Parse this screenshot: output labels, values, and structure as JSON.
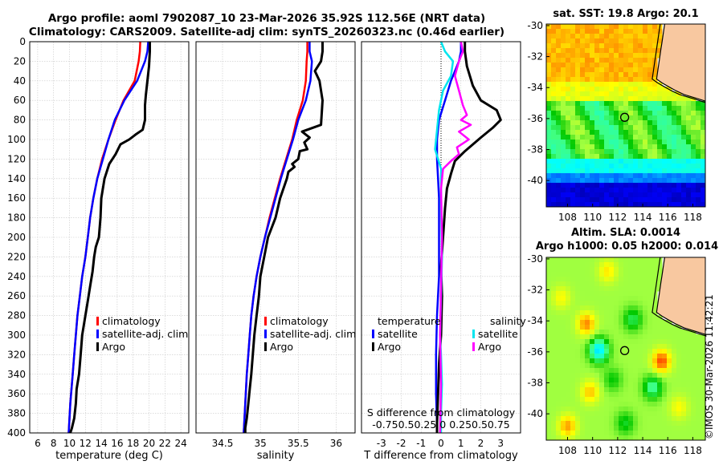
{
  "header": {
    "title_line1": "Argo profile: aoml 7902087_10 23-Mar-2026 35.92S 112.56E (NRT data)",
    "title_line2": "Climatology: CARS2009. Satellite-adj clim: synTS_20260323.nc (0.46d earlier)"
  },
  "map_sst": {
    "title": "sat. SST: 19.8 Argo: 20.1",
    "lon_ticks": [
      108,
      110,
      112,
      114,
      116,
      118
    ],
    "lat_ticks": [
      -30,
      -32,
      -34,
      -36,
      -38,
      -40
    ],
    "extent": {
      "lon": [
        106.3,
        119.0
      ],
      "lat": [
        -41.7,
        -29.9
      ]
    },
    "float_position": {
      "lon": 112.56,
      "lat": -35.92
    },
    "colors": {
      "land": "#f8c8a0"
    }
  },
  "map_sla": {
    "title_line1": "Altim. SLA: 0.0014",
    "title_line2": "Argo h1000: 0.05 h2000: 0.014",
    "lon_ticks": [
      108,
      110,
      112,
      114,
      116,
      118
    ],
    "lat_ticks": [
      -30,
      -32,
      -34,
      -36,
      -38,
      -40
    ],
    "extent": {
      "lon": [
        106.3,
        119.0
      ],
      "lat": [
        -41.7,
        -29.9
      ]
    },
    "float_position": {
      "lon": 112.56,
      "lat": -35.92
    }
  },
  "credit": "©IMOS 30-Mar-2026 11:42:21",
  "chart_data": [
    {
      "type": "line",
      "name": "temperature",
      "xlabel": "temperature (deg C)",
      "ylabel": "",
      "xlim": [
        5,
        25
      ],
      "ylim": [
        400,
        0
      ],
      "xticks": [
        6,
        8,
        10,
        12,
        14,
        16,
        18,
        20,
        22,
        24
      ],
      "yticks": [
        0,
        20,
        40,
        60,
        80,
        100,
        120,
        140,
        160,
        180,
        200,
        220,
        240,
        260,
        280,
        300,
        320,
        340,
        360,
        380,
        400
      ],
      "grid": true,
      "legend": {
        "placement": "lower-right",
        "entries": [
          "climatology",
          "satellite-adj. clim",
          "Argo"
        ]
      },
      "series": [
        {
          "name": "climatology",
          "color": "#ff0000",
          "width": 2.5,
          "x": [
            18.9,
            18.85,
            18.7,
            18.2,
            16.8,
            15.8,
            14.9,
            14.1,
            13.5,
            13.0,
            12.6,
            12.3,
            12.0,
            11.6,
            11.3,
            11.0,
            10.8,
            10.6,
            10.4,
            10.1,
            9.9
          ],
          "depth": [
            0,
            10,
            20,
            40,
            60,
            80,
            100,
            120,
            140,
            160,
            180,
            200,
            220,
            240,
            260,
            280,
            300,
            320,
            340,
            370,
            400
          ]
        },
        {
          "name": "satellite-adj. clim",
          "color": "#0000ff",
          "width": 2.5,
          "x": [
            19.9,
            19.8,
            19.5,
            18.5,
            16.9,
            15.7,
            14.9,
            14.2,
            13.5,
            13.0,
            12.6,
            12.3,
            12.0,
            11.6,
            11.3,
            11.0,
            10.8,
            10.6,
            10.4,
            10.1,
            9.9
          ],
          "depth": [
            0,
            10,
            20,
            40,
            60,
            80,
            100,
            120,
            140,
            160,
            180,
            200,
            220,
            240,
            260,
            280,
            300,
            320,
            340,
            370,
            400
          ]
        },
        {
          "name": "Argo",
          "color": "#000000",
          "width": 3,
          "x": [
            20.1,
            20.1,
            20.0,
            19.8,
            19.6,
            19.5,
            19.5,
            19.2,
            18.3,
            17.5,
            16.4,
            15.8,
            15.0,
            14.4,
            14.0,
            13.9,
            13.7,
            13.3,
            13.1,
            12.9,
            12.6,
            12.3,
            12.0,
            11.6,
            11.4,
            11.2,
            10.9,
            10.8,
            10.6,
            10.3,
            10.1
          ],
          "depth": [
            0,
            10,
            25,
            40,
            55,
            65,
            80,
            90,
            95,
            100,
            105,
            115,
            125,
            140,
            160,
            180,
            200,
            210,
            220,
            235,
            250,
            265,
            280,
            300,
            320,
            340,
            355,
            370,
            385,
            395,
            400
          ]
        }
      ]
    },
    {
      "type": "line",
      "name": "salinity",
      "xlabel": "salinity",
      "ylabel": "",
      "xlim": [
        34.15,
        36.25
      ],
      "ylim": [
        400,
        0
      ],
      "xticks": [
        34.5,
        35,
        35.5,
        36
      ],
      "xtick_labels": [
        "34.5",
        "35",
        "35.5",
        "36"
      ],
      "grid": true,
      "legend": {
        "placement": "lower-right",
        "entries": [
          "climatology",
          "satellite-adj. clim",
          "Argo"
        ]
      },
      "series": [
        {
          "name": "climatology",
          "color": "#ff0000",
          "width": 2.5,
          "x": [
            35.62,
            35.62,
            35.61,
            35.6,
            35.56,
            35.48,
            35.42,
            35.34,
            35.26,
            35.19,
            35.12,
            35.06,
            35.0,
            34.95,
            34.91,
            34.88,
            34.86,
            34.84,
            34.82,
            34.8,
            34.78
          ],
          "depth": [
            0,
            10,
            20,
            40,
            60,
            80,
            100,
            120,
            140,
            160,
            180,
            200,
            220,
            240,
            260,
            280,
            300,
            320,
            340,
            370,
            400
          ]
        },
        {
          "name": "satellite-adj. clim",
          "color": "#0000ff",
          "width": 2.5,
          "x": [
            35.65,
            35.65,
            35.68,
            35.66,
            35.6,
            35.5,
            35.43,
            35.35,
            35.27,
            35.2,
            35.13,
            35.06,
            35.0,
            34.95,
            34.91,
            34.88,
            34.86,
            34.84,
            34.82,
            34.8,
            34.78
          ],
          "depth": [
            0,
            10,
            20,
            40,
            60,
            80,
            100,
            120,
            140,
            160,
            180,
            200,
            220,
            240,
            260,
            280,
            300,
            320,
            340,
            370,
            400
          ]
        },
        {
          "name": "Argo",
          "color": "#000000",
          "width": 3,
          "x": [
            35.82,
            35.82,
            35.8,
            35.72,
            35.78,
            35.82,
            35.8,
            35.62,
            35.55,
            35.65,
            35.58,
            35.62,
            35.52,
            35.5,
            35.42,
            35.45,
            35.37,
            35.35,
            35.26,
            35.2,
            35.1,
            35.05,
            35.0,
            34.98,
            34.95,
            34.92,
            34.9,
            34.88,
            34.86,
            34.84,
            34.82,
            34.8,
            34.8
          ],
          "depth": [
            0,
            10,
            20,
            30,
            40,
            60,
            85,
            90,
            92,
            98,
            103,
            110,
            112,
            120,
            125,
            128,
            133,
            140,
            160,
            180,
            200,
            220,
            240,
            260,
            280,
            300,
            320,
            340,
            355,
            370,
            385,
            395,
            400
          ]
        }
      ]
    },
    {
      "type": "line",
      "name": "differences",
      "xlabel": "T difference from climatology",
      "xlabel_top": "S difference from climatology",
      "ylabel": "",
      "xlim": [
        -4,
        4
      ],
      "ylim": [
        400,
        0
      ],
      "xticks": [
        -3,
        -2,
        -1,
        0,
        1,
        2,
        3
      ],
      "xtick_labels": [
        "-3",
        "-2",
        "-1",
        "0",
        "1",
        "2",
        "3"
      ],
      "s_xtick_labels": [
        "-0.75",
        "0.5",
        "0.25",
        "0",
        "0.25",
        "0.5",
        "0.75"
      ],
      "s_xtick_label_text": "-0.750.50.25 0  0.250.50.75",
      "grid": true,
      "legend": {
        "placement": "lower",
        "temperature_header": "temperature",
        "salinity_header": "salinity",
        "temperature_entries": [
          "satellite",
          "Argo"
        ],
        "salinity_entries": [
          "satellite",
          "Argo"
        ]
      },
      "series": [
        {
          "name": "temperature satellite",
          "color": "#0000ff",
          "width": 2.5,
          "x": [
            1.0,
            1.0,
            0.9,
            0.5,
            0.2,
            -0.1,
            -0.2,
            -0.2,
            -0.15,
            -0.1,
            -0.1,
            -0.1,
            -0.2,
            -0.25,
            -0.25,
            -0.2,
            -0.2
          ],
          "depth": [
            0,
            10,
            20,
            40,
            60,
            80,
            100,
            120,
            140,
            160,
            200,
            240,
            280,
            320,
            360,
            390,
            400
          ]
        },
        {
          "name": "temperature Argo",
          "color": "#000000",
          "width": 3,
          "x": [
            1.2,
            1.2,
            1.3,
            1.6,
            2.0,
            2.8,
            3.0,
            2.6,
            2.0,
            1.6,
            1.2,
            0.7,
            0.5,
            0.3,
            0.2,
            0.1,
            0.0,
            0.05,
            0.0,
            -0.1,
            -0.15,
            -0.2,
            -0.2
          ],
          "depth": [
            0,
            10,
            25,
            45,
            60,
            70,
            80,
            88,
            98,
            105,
            112,
            122,
            135,
            150,
            170,
            200,
            230,
            260,
            300,
            330,
            360,
            390,
            400
          ]
        },
        {
          "name": "salinity satellite",
          "color": "#00e5ee",
          "width": 2.5,
          "x": [
            0.0,
            0.2,
            0.6,
            0.5,
            0.1,
            -0.1,
            -0.3,
            0.0,
            0.0,
            0.05,
            0.0,
            -0.05,
            0.0,
            0.05,
            0.0,
            0.0
          ],
          "depth": [
            0,
            10,
            20,
            35,
            50,
            70,
            110,
            130,
            170,
            220,
            260,
            300,
            320,
            350,
            380,
            400
          ]
        },
        {
          "name": "salinity Argo",
          "color": "#ff00ff",
          "width": 2.5,
          "x": [
            1.0,
            1.1,
            0.9,
            0.7,
            0.9,
            1.1,
            1.3,
            1.0,
            1.5,
            0.9,
            1.4,
            0.8,
            0.9,
            0.5,
            0.1,
            0.0,
            0.05,
            0.0,
            -0.05,
            0.0,
            -0.05
          ],
          "depth": [
            0,
            10,
            20,
            35,
            50,
            65,
            75,
            80,
            85,
            92,
            100,
            108,
            115,
            122,
            130,
            150,
            200,
            250,
            300,
            350,
            400
          ]
        }
      ]
    }
  ]
}
